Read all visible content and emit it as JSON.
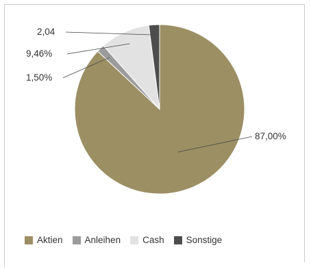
{
  "chart_data": {
    "type": "pie",
    "categories": [
      "Aktien",
      "Anleihen",
      "Cash",
      "Sonstige"
    ],
    "values": [
      87.0,
      1.5,
      9.46,
      2.04
    ],
    "data_labels": [
      "87,00%",
      "1,50%",
      "9,46%",
      "2,04"
    ],
    "colors": [
      "#9c8f64",
      "#9b9b9b",
      "#e2e2e2",
      "#4d4d4d"
    ],
    "legend_position": "bottom-left",
    "title": "",
    "start_angle_deg": 0,
    "direction": "clockwise"
  },
  "legend": {
    "items": [
      {
        "label": "Aktien",
        "color": "#9c8f64"
      },
      {
        "label": "Anleihen",
        "color": "#9b9b9b"
      },
      {
        "label": "Cash",
        "color": "#e2e2e2"
      },
      {
        "label": "Sonstige",
        "color": "#4d4d4d"
      }
    ]
  }
}
